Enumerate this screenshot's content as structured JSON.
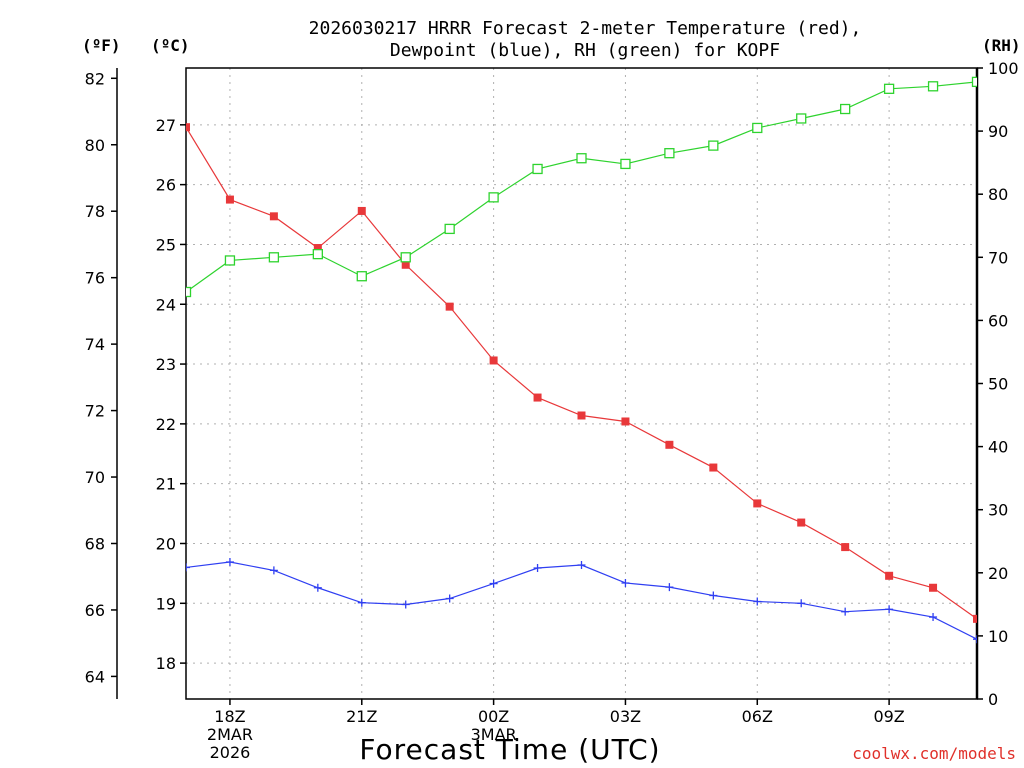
{
  "header": {
    "title_line1": "2026030217 HRRR Forecast 2-meter Temperature (red),",
    "title_line2": "Dewpoint (blue), RH (green) for KOPF"
  },
  "axes": {
    "f_unit": "(ºF)",
    "c_unit": "(ºC)",
    "rh_unit": "(RH)",
    "xlabel": "Forecast Time (UTC)"
  },
  "footer": {
    "credit": "coolwx.com/models"
  },
  "colors": {
    "temperature": "#e8383a",
    "dewpoint": "#2f3ff2",
    "rh": "#2ed32e",
    "grid": "#b0b0b0"
  },
  "chart_data": {
    "type": "line",
    "title": "2026030217 HRRR Forecast 2-meter Temperature (red), Dewpoint (blue), RH (green) for KOPF",
    "xlabel": "Forecast Time (UTC)",
    "x_hours": [
      17,
      18,
      19,
      20,
      21,
      22,
      23,
      24,
      25,
      26,
      27,
      28,
      29,
      30,
      31,
      32,
      33,
      34,
      35
    ],
    "xlim": [
      17,
      35
    ],
    "x_ticks": [
      {
        "hour": 18,
        "lines": [
          "18Z",
          "2MAR",
          "2026"
        ]
      },
      {
        "hour": 21,
        "lines": [
          "21Z"
        ]
      },
      {
        "hour": 24,
        "lines": [
          "00Z",
          "3MAR"
        ]
      },
      {
        "hour": 27,
        "lines": [
          "03Z"
        ]
      },
      {
        "hour": 30,
        "lines": [
          "06Z"
        ]
      },
      {
        "hour": 33,
        "lines": [
          "09Z"
        ]
      }
    ],
    "y_left_celsius": {
      "label": "(ºC)",
      "ylim": [
        17.4,
        27.95
      ],
      "ticks": [
        18,
        19,
        20,
        21,
        22,
        23,
        24,
        25,
        26,
        27
      ]
    },
    "y_left_fahrenheit": {
      "label": "(ºF)",
      "ticks": [
        64,
        66,
        68,
        70,
        72,
        74,
        76,
        78,
        80,
        82
      ]
    },
    "y_right_rh": {
      "label": "(RH)",
      "ylim": [
        0,
        100
      ],
      "ticks": [
        0,
        10,
        20,
        30,
        40,
        50,
        60,
        70,
        80,
        90,
        100
      ]
    },
    "series": [
      {
        "name": "Temperature",
        "axis": "celsius",
        "color": "red",
        "marker": "filled-square",
        "values": [
          26.96,
          25.75,
          25.47,
          24.94,
          25.56,
          24.66,
          23.96,
          23.06,
          22.44,
          22.14,
          22.04,
          21.65,
          21.27,
          20.67,
          20.35,
          19.94,
          19.46,
          19.26,
          18.74
        ]
      },
      {
        "name": "Dewpoint",
        "axis": "celsius",
        "color": "blue",
        "marker": "plus",
        "values": [
          19.6,
          19.69,
          19.55,
          19.26,
          19.01,
          18.98,
          19.08,
          19.33,
          19.59,
          19.64,
          19.34,
          19.27,
          19.13,
          19.03,
          19.0,
          18.86,
          18.9,
          18.77,
          18.4
        ]
      },
      {
        "name": "RH",
        "axis": "rh",
        "color": "green",
        "marker": "open-square",
        "values": [
          64.5,
          69.5,
          70.0,
          70.5,
          67.0,
          70.0,
          74.5,
          79.5,
          84.0,
          85.7,
          84.8,
          86.5,
          87.7,
          90.5,
          92.0,
          93.5,
          96.7,
          97.1,
          97.8
        ]
      }
    ]
  }
}
